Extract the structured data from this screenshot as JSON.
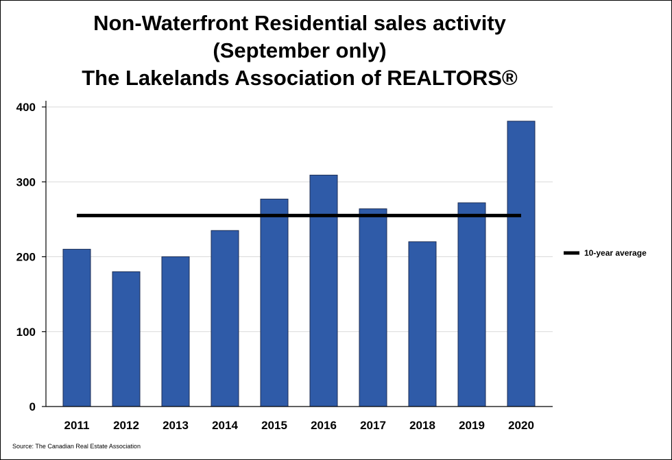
{
  "chart_data": {
    "type": "bar",
    "title_lines": [
      "Non-Waterfront Residential sales activity",
      "(September only)",
      "The Lakelands Association of REALTORS®"
    ],
    "categories": [
      "2011",
      "2012",
      "2013",
      "2014",
      "2015",
      "2016",
      "2017",
      "2018",
      "2019",
      "2020"
    ],
    "values": [
      210,
      180,
      200,
      235,
      277,
      309,
      264,
      220,
      272,
      381
    ],
    "reference_line": {
      "name": "10-year average",
      "value": 255
    },
    "ylim": [
      0,
      400
    ],
    "yticks": [
      0,
      100,
      200,
      300,
      400
    ],
    "grid": "horizontal",
    "legend_position": "right",
    "xlabel": "",
    "ylabel": "",
    "colors": {
      "bar": "#2f5ba8",
      "bar_edge": "#1c2e55",
      "average_line": "#000000",
      "grid": "#d9d9d9"
    }
  },
  "source": "Source: The Canadian Real Estate Association"
}
